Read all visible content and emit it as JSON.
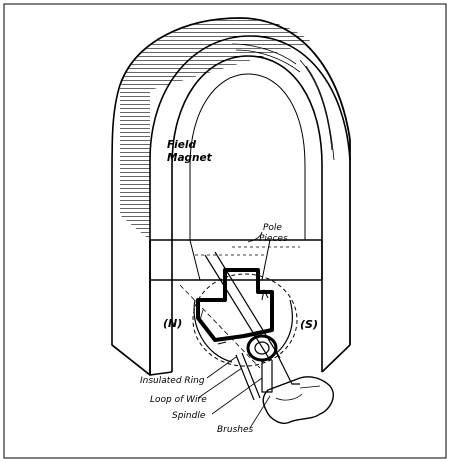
{
  "labels": {
    "field_magnet_line1": "Field",
    "field_magnet_line2": "Magnet",
    "pole_pieces_line1": "Pole",
    "pole_pieces_line2": "Pieces",
    "north": "(N)",
    "south": "(S)",
    "insulated_ring": "Insulated Ring",
    "loop_of_wire": "Loop of Wire",
    "spindle": "Spindle",
    "brushes": "Brushes"
  },
  "colors": {
    "ink": "#000000",
    "paper": "#ffffff"
  }
}
